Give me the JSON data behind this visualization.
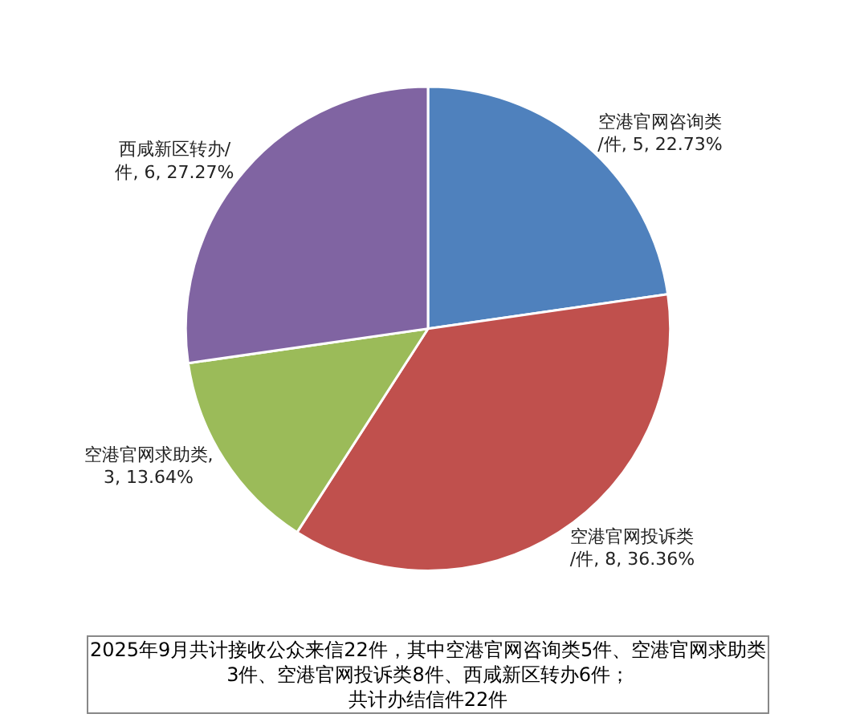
{
  "chart_data": {
    "type": "pie",
    "categories": [
      "空港官网咨询类/件",
      "空港官网投诉类/件",
      "空港官网求助类",
      "西咸新区转办/件"
    ],
    "values": [
      5,
      8,
      3,
      6
    ],
    "value_labels": [
      ", 5, 22.73%",
      ", 8, 36.36%",
      ", 3, 13.64%",
      ", 6, 27.27%"
    ],
    "colors": [
      "#4f81bd",
      "#c0504d",
      "#9bbb59",
      "#8064a2"
    ],
    "annotations": [
      "2025年9月共计接收公众来信22件，其中空港官网咨询类5件、空港官网求助类3件、空港官网投诉类8件、西咸新区转办6件；共计办结信件22件"
    ],
    "legend": false
  }
}
